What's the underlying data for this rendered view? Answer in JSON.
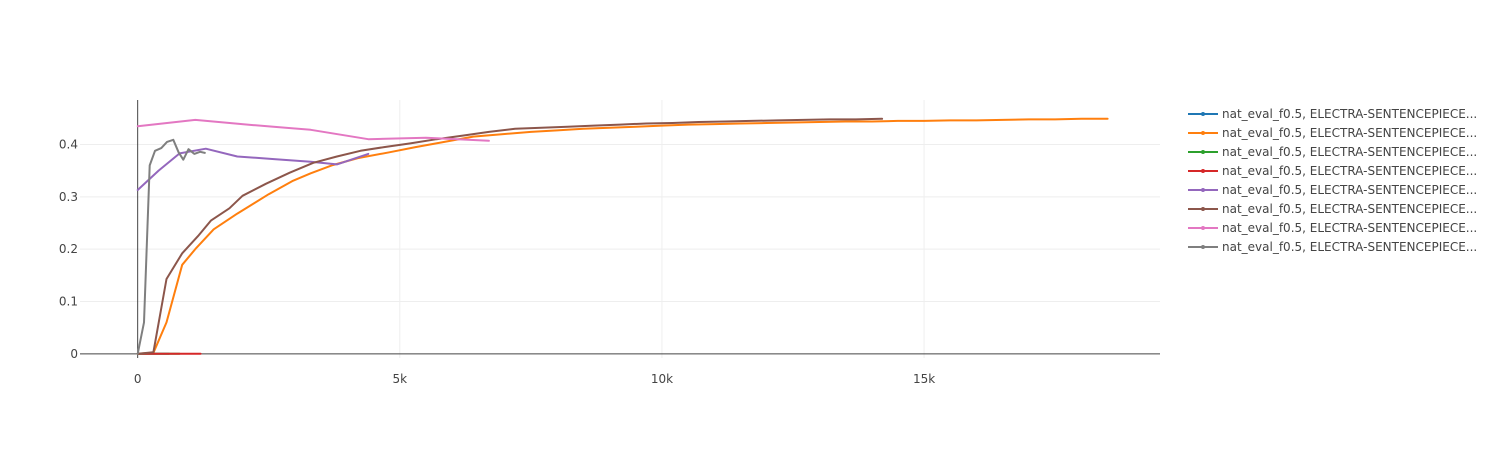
{
  "chart_data": {
    "type": "line",
    "title": "",
    "xlabel": "",
    "ylabel": "",
    "xlim": [
      -1100,
      19500
    ],
    "ylim": [
      -0.008,
      0.485
    ],
    "x_ticks": [
      0,
      5000,
      10000,
      15000
    ],
    "x_tick_labels": [
      "0",
      "5k",
      "10k",
      "15k"
    ],
    "y_ticks": [
      0,
      0.1,
      0.2,
      0.3,
      0.4
    ],
    "y_tick_labels": [
      "0",
      "0.1",
      "0.2",
      "0.3",
      "0.4"
    ],
    "grid": true,
    "legend_position": "right",
    "series": [
      {
        "name": "nat_eval_f0.5, ELECTRA-SENTENCEPIECE...",
        "color": "#1f77b4",
        "x": [
          0,
          600
        ],
        "y": [
          0,
          0
        ]
      },
      {
        "name": "nat_eval_f0.5, ELECTRA-SENTENCEPIECE...",
        "color": "#ff7f0e",
        "x": [
          0,
          300,
          550,
          850,
          1100,
          1450,
          1900,
          2500,
          2950,
          3300,
          3700,
          4200,
          4800,
          5300,
          5800,
          6400,
          7000,
          7500,
          8000,
          8500,
          9000,
          9500,
          10000,
          10500,
          11000,
          11500,
          12000,
          12500,
          13000,
          13500,
          14000,
          14500,
          15000,
          15500,
          16000,
          16500,
          17000,
          17500,
          18000,
          18500
        ],
        "y": [
          0,
          0.002,
          0.06,
          0.17,
          0.2,
          0.238,
          0.268,
          0.305,
          0.33,
          0.345,
          0.36,
          0.374,
          0.385,
          0.395,
          0.404,
          0.415,
          0.42,
          0.424,
          0.427,
          0.43,
          0.432,
          0.434,
          0.436,
          0.438,
          0.439,
          0.44,
          0.441,
          0.442,
          0.443,
          0.444,
          0.444,
          0.445,
          0.445,
          0.446,
          0.446,
          0.447,
          0.448,
          0.448,
          0.449,
          0.449
        ]
      },
      {
        "name": "nat_eval_f0.5, ELECTRA-SENTENCEPIECE...",
        "color": "#2ca02c",
        "x": [
          0,
          800
        ],
        "y": [
          0,
          0
        ]
      },
      {
        "name": "nat_eval_f0.5, ELECTRA-SENTENCEPIECE...",
        "color": "#d62728",
        "x": [
          0,
          300,
          600,
          900,
          1200
        ],
        "y": [
          0,
          0,
          0,
          0,
          0
        ]
      },
      {
        "name": "nat_eval_f0.5, ELECTRA-SENTENCEPIECE...",
        "color": "#9467bd",
        "x": [
          0,
          400,
          800,
          1300,
          1900,
          2600,
          3300,
          3800,
          4400
        ],
        "y": [
          0.313,
          0.35,
          0.383,
          0.392,
          0.377,
          0.372,
          0.367,
          0.362,
          0.382
        ]
      },
      {
        "name": "nat_eval_f0.5, ELECTRA-SENTENCEPIECE...",
        "color": "#8c564b",
        "x": [
          0,
          300,
          550,
          850,
          1150,
          1400,
          1750,
          2000,
          2450,
          2900,
          3350,
          3800,
          4250,
          4700,
          5200,
          5700,
          6200,
          6700,
          7200,
          7700,
          8200,
          8700,
          9200,
          9700,
          10200,
          10700,
          11200,
          11700,
          12200,
          12700,
          13200,
          13700,
          14200
        ],
        "y": [
          0,
          0.003,
          0.143,
          0.192,
          0.225,
          0.255,
          0.278,
          0.302,
          0.325,
          0.346,
          0.365,
          0.377,
          0.388,
          0.395,
          0.402,
          0.41,
          0.417,
          0.424,
          0.43,
          0.432,
          0.434,
          0.436,
          0.438,
          0.44,
          0.441,
          0.443,
          0.444,
          0.445,
          0.446,
          0.447,
          0.448,
          0.448,
          0.449
        ]
      },
      {
        "name": "nat_eval_f0.5, ELECTRA-SENTENCEPIECE...",
        "color": "#e377c2",
        "x": [
          0,
          1100,
          2200,
          3300,
          4400,
          5500,
          6700
        ],
        "y": [
          0.435,
          0.447,
          0.437,
          0.428,
          0.41,
          0.413,
          0.407
        ]
      },
      {
        "name": "nat_eval_f0.5, ELECTRA-SENTENCEPIECE...",
        "color": "#7f7f7f",
        "x": [
          0,
          120,
          230,
          330,
          450,
          560,
          680,
          780,
          870,
          970,
          1080,
          1190,
          1280
        ],
        "y": [
          0,
          0.06,
          0.36,
          0.388,
          0.393,
          0.405,
          0.409,
          0.385,
          0.371,
          0.391,
          0.382,
          0.386,
          0.384
        ]
      }
    ]
  }
}
